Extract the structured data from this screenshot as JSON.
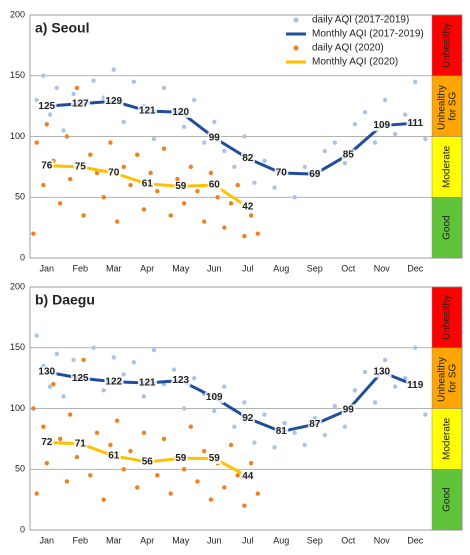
{
  "chart_data": [
    {
      "type": "scatter-line",
      "title": "a) Seoul",
      "legend": "upper right",
      "categories": [
        "Jan",
        "Feb",
        "Mar",
        "Apr",
        "May",
        "Jun",
        "Jul",
        "Aug",
        "Sep",
        "Oct",
        "Nov",
        "Dec"
      ],
      "xlim": [
        0,
        12
      ],
      "ylim": [
        0,
        200
      ],
      "yticks": [
        0,
        50,
        100,
        150,
        200
      ],
      "grid": true,
      "bands": [
        {
          "label": "Good",
          "from": 0,
          "to": 50,
          "color": "#5fc43a"
        },
        {
          "label": "Moderate",
          "from": 50,
          "to": 100,
          "color": "#ffff00"
        },
        {
          "label": "Unhealthy for SG",
          "from": 100,
          "to": 150,
          "color": "#ffa500"
        },
        {
          "label": "Unhealthy",
          "from": 150,
          "to": 200,
          "color": "#ff0000"
        }
      ],
      "series": [
        {
          "name": "daily AQI (2017-2019)",
          "type": "scatter",
          "color": "#a9c4e6",
          "x": [
            0.2,
            0.4,
            0.6,
            0.8,
            1.0,
            1.3,
            1.6,
            1.9,
            2.2,
            2.5,
            2.8,
            3.1,
            3.4,
            3.7,
            4.0,
            4.3,
            4.6,
            4.9,
            5.2,
            5.5,
            5.8,
            6.1,
            6.4,
            6.7,
            7.0,
            7.3,
            7.6,
            7.9,
            8.2,
            8.5,
            8.8,
            9.1,
            9.4,
            9.7,
            10.0,
            10.3,
            10.6,
            10.9,
            11.2,
            11.5,
            11.8
          ],
          "values": [
            130,
            150,
            118,
            140,
            105,
            135,
            128,
            146,
            132,
            155,
            112,
            145,
            125,
            98,
            140,
            118,
            108,
            130,
            95,
            112,
            88,
            75,
            100,
            62,
            80,
            58,
            72,
            50,
            75,
            66,
            88,
            95,
            78,
            110,
            120,
            95,
            130,
            102,
            118,
            145,
            98
          ]
        },
        {
          "name": "Monthly AQI (2017-2019)",
          "type": "line",
          "color": "#1f4e9a",
          "values": [
            125,
            127,
            129,
            121,
            120,
            99,
            82,
            70,
            69,
            85,
            109,
            111
          ]
        },
        {
          "name": "daily AQI (2020)",
          "type": "scatter",
          "color": "#f07f22",
          "x": [
            0.1,
            0.2,
            0.4,
            0.5,
            0.7,
            0.9,
            1.1,
            1.2,
            1.4,
            1.6,
            1.8,
            2.0,
            2.2,
            2.4,
            2.6,
            2.8,
            3.0,
            3.2,
            3.4,
            3.6,
            3.8,
            4.0,
            4.2,
            4.4,
            4.6,
            4.8,
            5.0,
            5.2,
            5.4,
            5.6,
            5.8,
            6.0,
            6.2,
            6.4,
            6.6,
            6.8
          ],
          "values": [
            20,
            95,
            60,
            110,
            80,
            45,
            100,
            65,
            140,
            35,
            85,
            70,
            50,
            95,
            30,
            75,
            60,
            85,
            40,
            70,
            55,
            90,
            35,
            65,
            45,
            75,
            55,
            30,
            70,
            50,
            25,
            45,
            60,
            18,
            35,
            20
          ]
        },
        {
          "name": "Monthly AQI (2020)",
          "type": "line",
          "color": "#ffc000",
          "values": [
            76,
            75,
            70,
            61,
            59,
            60,
            42,
            null,
            null,
            null,
            null,
            null
          ]
        }
      ]
    },
    {
      "type": "scatter-line",
      "title": "b) Daegu",
      "categories": [
        "Jan",
        "Feb",
        "Mar",
        "Apr",
        "May",
        "Jun",
        "Jul",
        "Aug",
        "Sep",
        "Oct",
        "Nov",
        "Dec"
      ],
      "xlim": [
        0,
        12
      ],
      "ylim": [
        0,
        200
      ],
      "yticks": [
        0,
        50,
        100,
        150,
        200
      ],
      "grid": true,
      "bands": [
        {
          "label": "Good",
          "from": 0,
          "to": 50,
          "color": "#5fc43a"
        },
        {
          "label": "Moderate",
          "from": 50,
          "to": 100,
          "color": "#ffff00"
        },
        {
          "label": "Unhealthy for SG",
          "from": 100,
          "to": 150,
          "color": "#ffa500"
        },
        {
          "label": "Unhealthy",
          "from": 150,
          "to": 200,
          "color": "#ff0000"
        }
      ],
      "series": [
        {
          "type": "scatter",
          "color": "#a9c4e6",
          "x": [
            0.2,
            0.4,
            0.6,
            0.8,
            1.0,
            1.3,
            1.6,
            1.9,
            2.2,
            2.5,
            2.8,
            3.1,
            3.4,
            3.7,
            4.0,
            4.3,
            4.6,
            4.9,
            5.2,
            5.5,
            5.8,
            6.1,
            6.4,
            6.7,
            7.0,
            7.3,
            7.6,
            7.9,
            8.2,
            8.5,
            8.8,
            9.1,
            9.4,
            9.7,
            10.0,
            10.3,
            10.6,
            10.9,
            11.2,
            11.5,
            11.8
          ],
          "values": [
            160,
            135,
            118,
            145,
            110,
            140,
            125,
            150,
            115,
            142,
            128,
            138,
            110,
            148,
            120,
            132,
            100,
            125,
            112,
            98,
            118,
            85,
            105,
            72,
            95,
            68,
            88,
            80,
            70,
            92,
            78,
            102,
            85,
            115,
            130,
            105,
            140,
            118,
            125,
            150,
            95
          ]
        },
        {
          "type": "line",
          "color": "#1f4e9a",
          "values": [
            130,
            125,
            122,
            121,
            123,
            109,
            92,
            81,
            87,
            99,
            130,
            119
          ]
        },
        {
          "type": "scatter",
          "color": "#f07f22",
          "x": [
            0.1,
            0.2,
            0.4,
            0.5,
            0.7,
            0.9,
            1.1,
            1.2,
            1.4,
            1.6,
            1.8,
            2.0,
            2.2,
            2.4,
            2.6,
            2.8,
            3.0,
            3.2,
            3.4,
            3.6,
            3.8,
            4.0,
            4.2,
            4.4,
            4.6,
            4.8,
            5.0,
            5.2,
            5.4,
            5.6,
            5.8,
            6.0,
            6.2,
            6.4,
            6.6,
            6.8
          ],
          "values": [
            100,
            30,
            85,
            55,
            120,
            75,
            40,
            95,
            60,
            140,
            45,
            80,
            25,
            70,
            90,
            50,
            65,
            35,
            80,
            55,
            45,
            75,
            30,
            60,
            50,
            85,
            40,
            65,
            25,
            55,
            35,
            70,
            45,
            20,
            55,
            30
          ]
        },
        {
          "type": "line",
          "color": "#ffc000",
          "values": [
            72,
            71,
            61,
            56,
            59,
            59,
            44,
            null,
            null,
            null,
            null,
            null
          ]
        }
      ]
    }
  ]
}
